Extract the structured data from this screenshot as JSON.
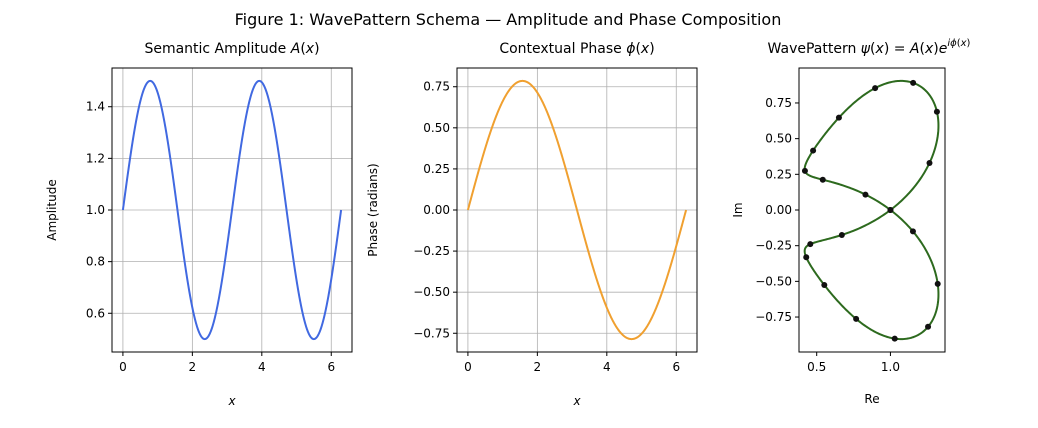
{
  "figure": {
    "suptitle": "Figure 1: WavePattern Schema — Amplitude and Phase Composition"
  },
  "chart_data": [
    {
      "type": "line",
      "title": "Semantic Amplitude A(x)",
      "xlabel": "x",
      "ylabel": "Amplitude",
      "xlim": [
        -0.3142,
        6.5973
      ],
      "ylim": [
        0.45,
        1.55
      ],
      "xticks": [
        0,
        2,
        4,
        6
      ],
      "yticks": [
        0.6,
        0.8,
        1.0,
        1.2,
        1.4
      ],
      "xtick_labels": [
        "0",
        "2",
        "4",
        "6"
      ],
      "ytick_labels": [
        "0.6",
        "0.8",
        "1.0",
        "1.2",
        "1.4"
      ],
      "grid": true,
      "series": [
        {
          "color": "#4169e1",
          "function": "A(x) = 1 + 0.5·sin(2x)",
          "x_range": [
            0,
            6.2832
          ],
          "x": [
            0,
            0.7854,
            1.5708,
            2.3562,
            3.1416,
            3.927,
            4.7124,
            5.4978,
            6.2832
          ],
          "y": [
            1.0,
            1.5,
            1.0,
            0.5,
            1.0,
            1.5,
            1.0,
            0.5,
            1.0
          ]
        }
      ]
    },
    {
      "type": "line",
      "title": "Contextual Phase ϕ(x)",
      "xlabel": "x",
      "ylabel": "Phase (radians)",
      "xlim": [
        -0.3142,
        6.5973
      ],
      "ylim": [
        -0.864,
        0.864
      ],
      "xticks": [
        0,
        2,
        4,
        6
      ],
      "yticks": [
        -0.75,
        -0.5,
        -0.25,
        0.0,
        0.25,
        0.5,
        0.75
      ],
      "xtick_labels": [
        "0",
        "2",
        "4",
        "6"
      ],
      "ytick_labels": [
        "−0.75",
        "−0.50",
        "−0.25",
        "0.00",
        "0.25",
        "0.50",
        "0.75"
      ],
      "grid": true,
      "series": [
        {
          "color": "#f0a030",
          "function": "ϕ(x) = (π/4)·sin(x)",
          "x_range": [
            0,
            6.2832
          ],
          "x": [
            0,
            1.5708,
            3.1416,
            4.7124,
            6.2832
          ],
          "y": [
            0.0,
            0.7854,
            0.0,
            -0.7854,
            0.0
          ]
        }
      ]
    },
    {
      "type": "line",
      "title": "WavePattern ψ(x) = A(x)e^{iϕ(x)}",
      "xlabel": "Re",
      "ylabel": "Im",
      "xlim": [
        0.38,
        1.37
      ],
      "ylim": [
        -0.995,
        0.995
      ],
      "xticks": [
        0.5,
        1.0
      ],
      "yticks": [
        -0.75,
        -0.5,
        -0.25,
        0.0,
        0.25,
        0.5,
        0.75
      ],
      "xtick_labels": [
        "0.5",
        "1.0"
      ],
      "ytick_labels": [
        "−0.75",
        "−0.50",
        "−0.25",
        "0.00",
        "0.25",
        "0.50",
        "0.75"
      ],
      "grid": false,
      "series": [
        {
          "color": "#2d6a1e",
          "function": "Re = A(x)cos(ϕ(x)), Im = A(x)sin(ϕ(x))",
          "x_range": [
            0,
            6.2832
          ]
        }
      ],
      "markers": {
        "color": "#111111",
        "count": 20
      }
    }
  ]
}
